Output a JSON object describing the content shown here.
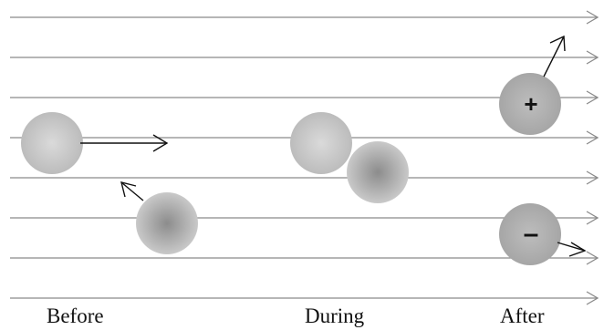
{
  "labels": {
    "before": "Before",
    "during": "During",
    "after": "After"
  },
  "charges": {
    "positive": "+",
    "negative": "–"
  },
  "colors": {
    "line": "#8a8a8a",
    "arrow": "#111111",
    "particle_light": "#d6d6d6",
    "particle_dark": "#a8a8a8",
    "sign": "#111111"
  },
  "icons": {
    "field_line_arrow": "chevron-right-icon",
    "velocity_arrow": "arrow-icon"
  }
}
